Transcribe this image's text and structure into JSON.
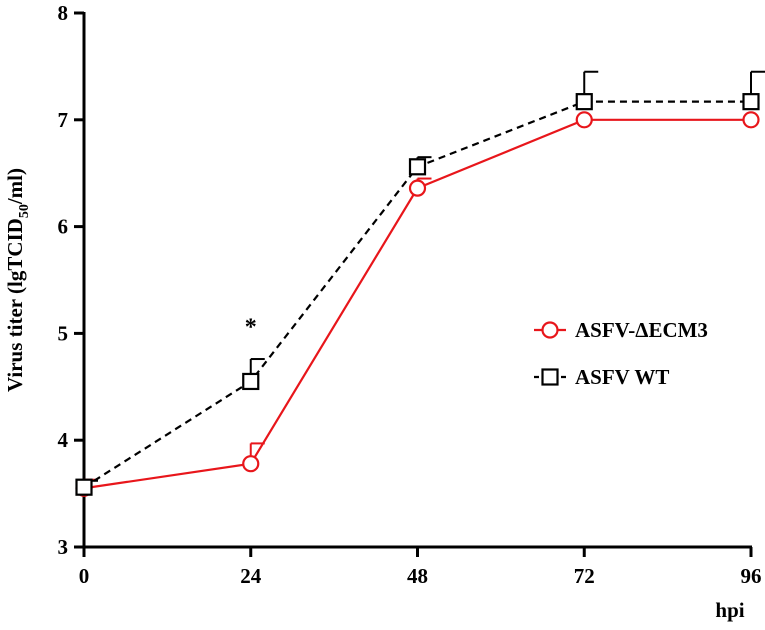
{
  "chart_data": {
    "type": "line",
    "title": "",
    "xlabel": "hpi",
    "ylabel": {
      "main": "Virus titer (lgTCID",
      "sub": "50",
      "tail": "/ml)"
    },
    "x": [
      0,
      24,
      48,
      72,
      96
    ],
    "xticks": [
      "0",
      "24",
      "48",
      "72",
      "96"
    ],
    "yticks": [
      "3",
      "4",
      "5",
      "6",
      "7",
      "8"
    ],
    "xlim": [
      0,
      96
    ],
    "ylim": [
      3,
      8
    ],
    "grid": false,
    "legend_position": "right",
    "series": [
      {
        "name": "ASFV-ΔECM3",
        "color": "#e8161b",
        "marker": "circle",
        "line_style": "solid",
        "values": [
          3.55,
          3.78,
          6.36,
          7.0,
          7.0
        ],
        "error_upper": [
          3.63,
          3.97,
          6.45,
          7.0,
          7.0
        ]
      },
      {
        "name": "ASFV WT",
        "color": "#000000",
        "marker": "square",
        "line_style": "dashed",
        "values": [
          3.56,
          4.55,
          6.56,
          7.17,
          7.17
        ],
        "error_upper": [
          3.62,
          4.76,
          6.65,
          7.45,
          7.45
        ]
      }
    ],
    "annotations": [
      {
        "text": "*",
        "x": 24,
        "y": 5.12
      }
    ]
  }
}
